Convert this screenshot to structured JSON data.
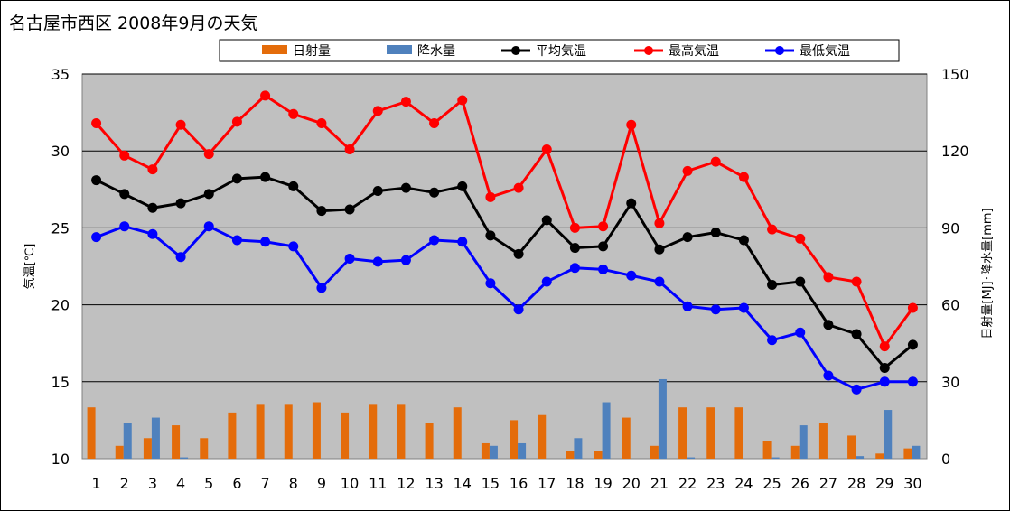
{
  "chart_data": {
    "type": "bar+line",
    "title": "名古屋市西区  2008年9月の天気",
    "categories": [
      1,
      2,
      3,
      4,
      5,
      6,
      7,
      8,
      9,
      10,
      11,
      12,
      13,
      14,
      15,
      16,
      17,
      18,
      19,
      20,
      21,
      22,
      23,
      24,
      25,
      26,
      27,
      28,
      29,
      30
    ],
    "ylabel_left": "気温[℃]",
    "ylabel_right": "日射量[MJ]･降水量[mm]",
    "ylim_left": [
      10,
      35
    ],
    "yticks_left": [
      10,
      15,
      20,
      25,
      30,
      35
    ],
    "ylim_right": [
      0,
      150
    ],
    "yticks_right": [
      0,
      30,
      60,
      90,
      120,
      150
    ],
    "grid": true,
    "legend_position": "top",
    "series": [
      {
        "name": "日射量",
        "type": "bar",
        "axis": "right",
        "color": "#E46C0A",
        "values": [
          20,
          5,
          8,
          13,
          8,
          18,
          21,
          21,
          22,
          18,
          21,
          21,
          14,
          20,
          6,
          15,
          17,
          3,
          3,
          16,
          5,
          20,
          20,
          20,
          7,
          5,
          14,
          9,
          2,
          4
        ]
      },
      {
        "name": "降水量",
        "type": "bar",
        "axis": "right",
        "color": "#4F81BD",
        "values": [
          0,
          14,
          16,
          0.5,
          0,
          0,
          0,
          0,
          0,
          0,
          0,
          0,
          0,
          0,
          5,
          6,
          0,
          8,
          22,
          0,
          31,
          0.5,
          0,
          0,
          0.5,
          13,
          0,
          1,
          19,
          5
        ]
      },
      {
        "name": "平均気温",
        "type": "line",
        "axis": "left",
        "color": "#000000",
        "values": [
          28.1,
          27.2,
          26.3,
          26.6,
          27.2,
          28.2,
          28.3,
          27.7,
          26.1,
          26.2,
          27.4,
          27.6,
          27.3,
          27.7,
          24.5,
          23.3,
          25.5,
          23.7,
          23.8,
          26.6,
          23.6,
          24.4,
          24.7,
          24.2,
          21.3,
          21.5,
          18.7,
          18.1,
          15.9,
          17.4
        ]
      },
      {
        "name": "最高気温",
        "type": "line",
        "axis": "left",
        "color": "#FF0000",
        "values": [
          31.8,
          29.7,
          28.8,
          31.7,
          29.8,
          31.9,
          33.6,
          32.4,
          31.8,
          30.1,
          32.6,
          33.2,
          31.8,
          33.3,
          27.0,
          27.6,
          30.1,
          25.0,
          25.1,
          31.7,
          25.3,
          28.7,
          29.3,
          28.3,
          24.9,
          24.3,
          21.8,
          21.5,
          17.3,
          19.8
        ]
      },
      {
        "name": "最低気温",
        "type": "line",
        "axis": "left",
        "color": "#0000FF",
        "values": [
          24.4,
          25.1,
          24.6,
          23.1,
          25.1,
          24.2,
          24.1,
          23.8,
          21.1,
          23.0,
          22.8,
          22.9,
          24.2,
          24.1,
          21.4,
          19.7,
          21.5,
          22.4,
          22.3,
          21.9,
          21.5,
          19.9,
          19.7,
          19.8,
          17.7,
          18.2,
          15.4,
          14.5,
          15.0,
          15.0
        ]
      }
    ]
  }
}
